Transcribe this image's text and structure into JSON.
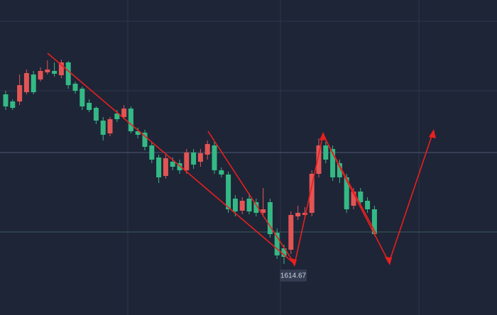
{
  "chart_data": {
    "type": "candlestick",
    "categories": [
      null,
      null,
      null,
      null,
      null,
      null,
      null,
      null,
      null,
      null,
      null,
      null,
      null,
      null,
      null,
      null,
      null,
      null,
      null,
      null,
      null,
      null,
      null,
      null,
      null,
      null,
      null,
      null,
      null,
      null,
      null,
      null,
      null,
      null,
      null,
      null,
      null,
      null,
      null,
      null,
      null,
      null,
      null,
      null,
      null,
      null,
      null,
      null,
      null,
      null,
      null,
      null,
      null,
      null
    ],
    "open": [
      1662.4,
      1660.4,
      1660.4,
      1663,
      1668,
      1666.6,
      1668.6,
      1669,
      1667.8,
      1671.4,
      1665.4,
      1664,
      1660,
      1658.6,
      1655,
      1651.4,
      1657,
      1656,
      1658.4,
      1652,
      1651.6,
      1648,
      1644.6,
      1639.4,
      1643.4,
      1643,
      1641,
      1646,
      1643.4,
      1645.4,
      1648,
      1641,
      1639.8,
      1633,
      1629.6,
      1633,
      1632,
      1629,
      1632,
      1623.4,
      1619,
      1618.6,
      1628,
      1628.4,
      1629,
      1640,
      1648,
      1647,
      1643,
      1639,
      1631,
      1635,
      1632.4,
      1630
    ],
    "high": [
      1663.4,
      1661,
      1668,
      1669.4,
      1669,
      1670,
      1672,
      1671.4,
      1672.2,
      1671.8,
      1666,
      1664.6,
      1661,
      1659,
      1656,
      1656,
      1658,
      1659.4,
      1659,
      1653,
      1652.4,
      1649,
      1645.4,
      1645.4,
      1644.6,
      1644,
      1647,
      1647,
      1647,
      1649.4,
      1649,
      1641.8,
      1640.6,
      1634,
      1633.4,
      1634.6,
      1633,
      1636,
      1633,
      1624.6,
      1620,
      1629.4,
      1631,
      1630.6,
      1641,
      1650,
      1649,
      1648,
      1644,
      1640,
      1636,
      1636,
      1633.4,
      1631
    ],
    "low": [
      1658,
      1658,
      1659.4,
      1662.4,
      1662.4,
      1666,
      1668,
      1667.4,
      1667,
      1664,
      1662.6,
      1658,
      1657.4,
      1654,
      1649.4,
      1650.6,
      1654.6,
      1655.4,
      1651.4,
      1650,
      1646.6,
      1643,
      1637.4,
      1638.6,
      1641,
      1640,
      1640,
      1641.4,
      1642,
      1644,
      1640,
      1639,
      1629,
      1628,
      1628.6,
      1628.6,
      1628,
      1628,
      1622,
      1616,
      1614.6,
      1617.4,
      1627,
      1627.4,
      1628,
      1639,
      1643,
      1638,
      1637.4,
      1629,
      1630,
      1631,
      1629,
      1622.6
    ],
    "close": [
      1659,
      1658.6,
      1665,
      1668.4,
      1663,
      1669,
      1669.4,
      1668.2,
      1671.4,
      1665,
      1663.4,
      1659,
      1658,
      1655,
      1651,
      1655.4,
      1655.4,
      1658.4,
      1652,
      1651,
      1647.6,
      1644,
      1639,
      1644.4,
      1642,
      1641,
      1646,
      1642.6,
      1645.8,
      1648.4,
      1641,
      1639.8,
      1630,
      1629.4,
      1632.4,
      1629.4,
      1629,
      1630,
      1623,
      1617,
      1616.6,
      1628.4,
      1629,
      1629,
      1640,
      1648,
      1644,
      1639,
      1639,
      1630,
      1635,
      1632,
      1630,
      1623
    ],
    "up_color": "#e25555",
    "down_color": "#34b985",
    "ylim": [
      1600.2,
      1689
    ],
    "annotations": [
      {
        "text": "1614.67"
      }
    ]
  }
}
